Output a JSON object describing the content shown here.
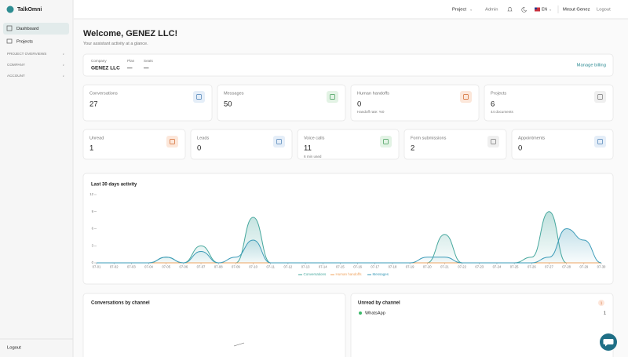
{
  "sidebar": {
    "brand": "TalkOmni",
    "nav": [
      "Dashboard",
      "Projects"
    ],
    "sections": [
      "PROJECT OVERVIEWS",
      "COMPANY",
      "ACCOUNT"
    ],
    "logout": "Logout"
  },
  "topbar": {
    "project": "Project",
    "admin": "Admin",
    "language": "EN",
    "user": "Mesut Genez",
    "logout": "Logout"
  },
  "header": {
    "title": "Welcome, GENEZ LLC!",
    "subtitle": "Your assistant activity at a glance."
  },
  "company": {
    "fields": [
      {
        "label": "Company",
        "value": "GENEZ LLC"
      },
      {
        "label": "Plan",
        "value": "—"
      },
      {
        "label": "Seats",
        "value": "—"
      }
    ],
    "action": "Manage billing"
  },
  "stats": [
    {
      "label": "Conversations",
      "value": 27
    },
    {
      "label": "Messages",
      "value": 50
    },
    {
      "label": "Human handoffs",
      "value": 0,
      "note": "Handoff rate: %0"
    },
    {
      "label": "Projects",
      "value": 6,
      "note": "44 documents"
    },
    {
      "label": "Unread",
      "value": 1
    },
    {
      "label": "Leads",
      "value": 0
    },
    {
      "label": "Voice calls",
      "value": 11,
      "note": "6 min used"
    },
    {
      "label": "Form submissions",
      "value": 2
    },
    {
      "label": "Appointments",
      "value": 0
    }
  ],
  "chart_data": {
    "type": "area",
    "title": "Last 30 days activity",
    "categories": [
      "07-01",
      "07-02",
      "07-03",
      "07-04",
      "07-05",
      "07-06",
      "07-07",
      "07-08",
      "07-09",
      "07-10",
      "07-11",
      "07-12",
      "07-13",
      "07-14",
      "07-15",
      "07-16",
      "07-17",
      "07-18",
      "07-19",
      "07-20",
      "07-21",
      "07-22",
      "07-23",
      "07-24",
      "07-25",
      "07-26",
      "07-27",
      "07-28",
      "07-29",
      "07-30"
    ],
    "series": [
      {
        "name": "Conversations",
        "color": "#47a89e",
        "values": [
          0,
          0,
          0,
          0,
          1,
          0,
          3,
          0,
          0,
          8,
          0,
          0,
          0,
          0,
          0,
          0,
          0,
          0,
          0,
          0,
          5,
          0,
          0,
          0,
          0,
          1,
          9,
          0,
          0,
          0
        ]
      },
      {
        "name": "Human handoffs",
        "color": "#f0a35e",
        "values": [
          0,
          0,
          0,
          0,
          0,
          0,
          0,
          0,
          0,
          0,
          0,
          0,
          0,
          0,
          0,
          0,
          0,
          0,
          0,
          0,
          0,
          0,
          0,
          0,
          0,
          0,
          0,
          0,
          0,
          0
        ]
      },
      {
        "name": "Messages",
        "color": "#3b9bb8",
        "values": [
          0,
          0,
          0,
          0,
          1,
          0,
          2,
          0,
          1,
          4,
          0,
          0,
          0,
          0,
          0,
          0,
          0,
          0,
          0,
          1,
          1,
          0,
          0,
          0,
          0,
          0,
          1,
          6,
          4,
          0
        ]
      }
    ],
    "ylim": [
      0,
      12
    ],
    "yticks": [
      0,
      3,
      6,
      9,
      12
    ],
    "grid": false,
    "legend": "bottom"
  },
  "channels": {
    "conversations_title": "Conversations by channel",
    "unread_title": "Unread by channel",
    "unread_badge": 1,
    "unread_rows": [
      {
        "name": "WhatsApp",
        "value": 1
      }
    ]
  }
}
